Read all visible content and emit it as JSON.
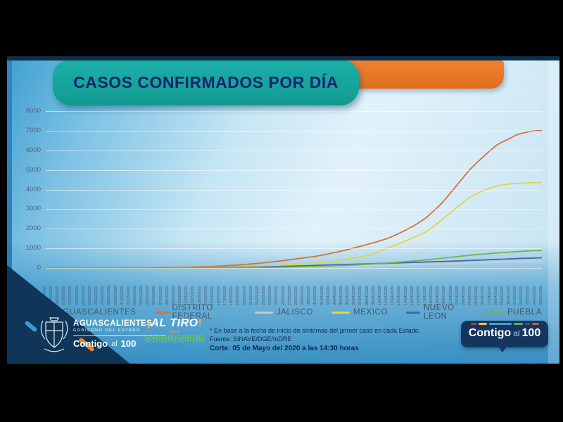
{
  "slide": {
    "title": "CASOS CONFIRMADOS POR DÍA"
  },
  "footer": {
    "gov": {
      "state": "AGUASCALIENTES",
      "subtitle": "GOBIERNO DEL ESTADO",
      "slogan_contigo": "Contigo",
      "slogan_al": "al",
      "slogan_100": "100"
    },
    "altiro": {
      "excl_open": "¡",
      "word": "AL TIRO",
      "excl_close": "!",
      "mid": "con el",
      "bottom": "CORONAVIRUS"
    },
    "note_line1": "* En base a la fecha de inicio de síntomas del primer caso en cada Estado.",
    "note_line2": "Fuente: SINAVE/DGE/InDRE",
    "note_line3": "Corte: 05 de Mayo del 2020 a las 14:30 horas",
    "badge": {
      "contigo": "Contigo",
      "al": "al",
      "hundred": "100"
    }
  },
  "colors": {
    "banner_teal": "#16a8a0",
    "orange_bar": "#e8762a",
    "navy_text": "#12266b",
    "slide_blue": "#3e9fd0"
  },
  "chart_data": {
    "type": "line",
    "title": "CASOS CONFIRMADOS POR DÍA",
    "xlabel": "",
    "ylabel": "",
    "ylim": [
      0,
      8000
    ],
    "yticks": [
      0,
      1000,
      2000,
      3000,
      4000,
      5000,
      6000,
      7000,
      8000
    ],
    "grid": true,
    "legend_position": "bottom",
    "x": [
      "18/02/2020",
      "19/02/2020",
      "20/02/2020",
      "21/02/2020",
      "22/02/2020",
      "23/02/2020",
      "24/02/2020",
      "25/02/2020",
      "26/02/2020",
      "27/02/2020",
      "28/02/2020",
      "29/02/2020",
      "01/03/2020",
      "02/03/2020",
      "03/03/2020",
      "04/03/2020",
      "05/03/2020",
      "06/03/2020",
      "07/03/2020",
      "08/03/2020",
      "09/03/2020",
      "10/03/2020",
      "11/03/2020",
      "12/03/2020",
      "13/03/2020",
      "14/03/2020",
      "15/03/2020",
      "16/03/2020",
      "17/03/2020",
      "18/03/2020",
      "19/03/2020",
      "20/03/2020",
      "21/03/2020",
      "22/03/2020",
      "23/03/2020",
      "24/03/2020",
      "25/03/2020",
      "26/03/2020",
      "27/03/2020",
      "28/03/2020",
      "29/03/2020",
      "30/03/2020",
      "31/03/2020",
      "01/04/2020",
      "02/04/2020",
      "03/04/2020",
      "04/04/2020",
      "05/04/2020",
      "06/04/2020",
      "07/04/2020",
      "08/04/2020",
      "09/04/2020",
      "10/04/2020",
      "11/04/2020",
      "12/04/2020",
      "13/04/2020",
      "14/04/2020",
      "15/04/2020",
      "16/04/2020",
      "17/04/2020",
      "18/04/2020",
      "19/04/2020",
      "20/04/2020",
      "21/04/2020",
      "22/04/2020",
      "23/04/2020",
      "24/04/2020",
      "25/04/2020",
      "26/04/2020",
      "27/04/2020",
      "28/04/2020",
      "29/04/2020",
      "30/04/2020",
      "01/05/2020",
      "02/05/2020",
      "03/05/2020",
      "04/05/2020",
      "05/05/2020"
    ],
    "series": [
      {
        "name": "AGUASCALIENTES",
        "color": "#b8d4e6",
        "values": [
          0,
          0,
          0,
          0,
          0,
          0,
          0,
          0,
          0,
          0,
          0,
          0,
          0,
          0,
          0,
          0,
          0,
          0,
          0,
          0,
          0,
          1,
          1,
          2,
          2,
          3,
          4,
          5,
          6,
          8,
          10,
          12,
          14,
          17,
          20,
          23,
          27,
          31,
          35,
          39,
          44,
          49,
          54,
          59,
          64,
          70,
          76,
          82,
          89,
          96,
          103,
          110,
          118,
          126,
          134,
          142,
          151,
          160,
          169,
          178,
          188,
          198,
          208,
          218,
          228,
          238,
          248,
          258,
          268,
          278,
          288,
          297,
          306,
          314,
          320,
          325,
          328,
          330
        ]
      },
      {
        "name": "DISTRITO FEDERAL",
        "color": "#d6713a",
        "values": [
          0,
          0,
          0,
          0,
          1,
          1,
          1,
          2,
          2,
          3,
          4,
          5,
          6,
          7,
          9,
          11,
          13,
          16,
          19,
          23,
          28,
          34,
          41,
          49,
          58,
          69,
          82,
          97,
          114,
          133,
          155,
          180,
          208,
          238,
          270,
          305,
          342,
          382,
          425,
          468,
          512,
          556,
          600,
          660,
          725,
          795,
          870,
          950,
          1035,
          1120,
          1210,
          1300,
          1400,
          1500,
          1640,
          1790,
          1950,
          2130,
          2330,
          2550,
          2850,
          3150,
          3500,
          3900,
          4300,
          4700,
          5080,
          5400,
          5700,
          6000,
          6270,
          6450,
          6600,
          6780,
          6880,
          6950,
          7000,
          7000
        ]
      },
      {
        "name": "JALISCO",
        "color": "#c4c9cc",
        "values": [
          0,
          0,
          0,
          0,
          0,
          0,
          0,
          0,
          0,
          0,
          0,
          0,
          0,
          0,
          0,
          1,
          1,
          1,
          2,
          2,
          3,
          3,
          4,
          5,
          7,
          9,
          11,
          14,
          17,
          21,
          25,
          30,
          35,
          41,
          47,
          54,
          61,
          69,
          77,
          85,
          94,
          103,
          112,
          120,
          128,
          136,
          144,
          152,
          160,
          168,
          176,
          184,
          192,
          200,
          208,
          216,
          224,
          232,
          240,
          249,
          258,
          267,
          276,
          285,
          294,
          303,
          312,
          321,
          330,
          339,
          348,
          357,
          366,
          374,
          381,
          387,
          392,
          396
        ]
      },
      {
        "name": "MEXICO",
        "color": "#e3d24b",
        "values": [
          0,
          0,
          0,
          0,
          0,
          0,
          0,
          0,
          0,
          0,
          0,
          1,
          1,
          1,
          2,
          2,
          3,
          4,
          5,
          6,
          8,
          10,
          12,
          15,
          18,
          22,
          27,
          32,
          38,
          45,
          53,
          62,
          72,
          84,
          97,
          112,
          128,
          146,
          166,
          188,
          212,
          238,
          265,
          295,
          330,
          370,
          415,
          465,
          520,
          580,
          650,
          760,
          880,
          1010,
          1140,
          1270,
          1400,
          1540,
          1690,
          1840,
          2080,
          2330,
          2600,
          2870,
          3140,
          3400,
          3640,
          3820,
          3960,
          4080,
          4180,
          4240,
          4280,
          4310,
          4330,
          4345,
          4350,
          4350
        ]
      },
      {
        "name": "NUEVO LEON",
        "color": "#3a6cb0",
        "values": [
          0,
          0,
          0,
          0,
          0,
          0,
          0,
          0,
          0,
          0,
          0,
          0,
          0,
          0,
          1,
          1,
          1,
          2,
          2,
          3,
          4,
          5,
          6,
          8,
          10,
          12,
          15,
          18,
          22,
          26,
          31,
          37,
          43,
          50,
          58,
          66,
          75,
          84,
          93,
          103,
          113,
          123,
          133,
          142,
          152,
          162,
          172,
          182,
          192,
          202,
          212,
          222,
          232,
          242,
          252,
          262,
          272,
          282,
          293,
          304,
          315,
          326,
          337,
          348,
          360,
          372,
          384,
          396,
          409,
          422,
          436,
          450,
          465,
          478,
          490,
          500,
          510,
          520
        ]
      },
      {
        "name": "PUEBLA",
        "color": "#74b34c",
        "values": [
          0,
          0,
          0,
          0,
          0,
          0,
          0,
          0,
          0,
          0,
          0,
          0,
          0,
          0,
          0,
          0,
          0,
          1,
          1,
          1,
          2,
          2,
          3,
          3,
          4,
          5,
          6,
          8,
          10,
          12,
          14,
          17,
          20,
          24,
          28,
          33,
          38,
          44,
          50,
          57,
          64,
          72,
          80,
          90,
          100,
          112,
          125,
          140,
          156,
          172,
          190,
          210,
          230,
          252,
          275,
          300,
          325,
          352,
          380,
          412,
          445,
          480,
          516,
          552,
          588,
          622,
          655,
          686,
          714,
          740,
          764,
          786,
          806,
          830,
          852,
          870,
          882,
          890
        ]
      }
    ]
  }
}
